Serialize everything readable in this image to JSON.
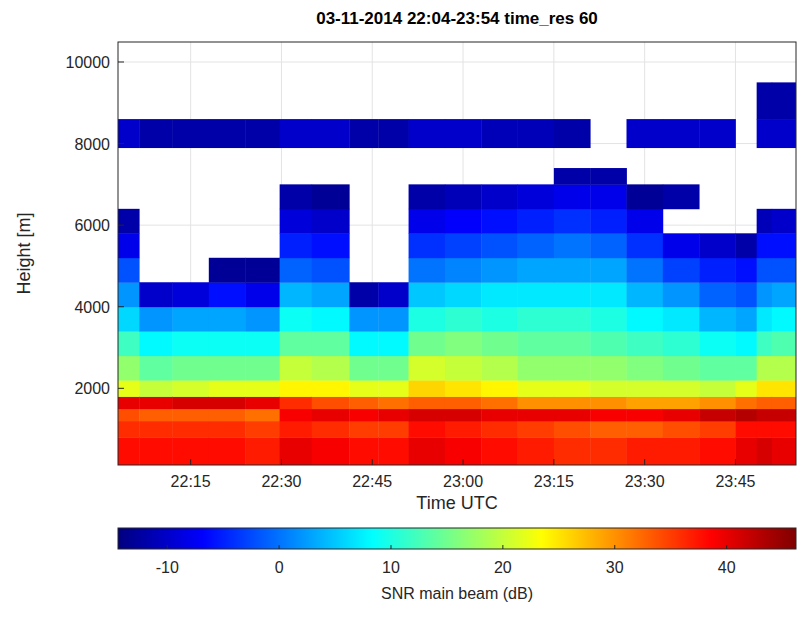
{
  "chart_data": {
    "type": "heatmap",
    "title": "03-11-2014 22:04-23:54 time_res 60",
    "x_label": "Time UTC",
    "y_label": "Height [m]",
    "xlim": [
      1323,
      1435
    ],
    "xticks": [
      {
        "value": 1335,
        "label": "22:15"
      },
      {
        "value": 1350,
        "label": "22:30"
      },
      {
        "value": 1365,
        "label": "22:45"
      },
      {
        "value": 1380,
        "label": "23:00"
      },
      {
        "value": 1395,
        "label": "23:15"
      },
      {
        "value": 1410,
        "label": "23:30"
      },
      {
        "value": 1425,
        "label": "23:45"
      }
    ],
    "ylim": [
      120,
      10490
    ],
    "yticks": [
      2000,
      4000,
      6000,
      8000,
      10000
    ],
    "grid": true,
    "x_edges": [
      1323,
      1326.5,
      1332,
      1338,
      1344,
      1349.7,
      1355,
      1361.2,
      1366,
      1371,
      1377,
      1383,
      1389,
      1395,
      1401,
      1407,
      1413,
      1419,
      1425,
      1428.5,
      1431,
      1435
    ],
    "y_edges": [
      120,
      800,
      1200,
      1500,
      1800,
      2200,
      2800,
      3400,
      4000,
      4600,
      5200,
      5800,
      6400,
      7000,
      7400,
      7900,
      8600,
      9500,
      10490
    ],
    "cells": [
      [
        38,
        36,
        34,
        40,
        22,
        17,
        12,
        6,
        2,
        -2,
        -8,
        -12,
        null,
        null,
        null,
        -10,
        null,
        null
      ],
      [
        38,
        36,
        33,
        40,
        20,
        14,
        8,
        2,
        -10,
        null,
        null,
        null,
        null,
        null,
        null,
        -12,
        null,
        null
      ],
      [
        38,
        36,
        33,
        41,
        21,
        15,
        9,
        3,
        -9,
        null,
        null,
        null,
        null,
        null,
        null,
        -12,
        null,
        null
      ],
      [
        38,
        36,
        33,
        41,
        22,
        15,
        9,
        3,
        -6,
        -13,
        null,
        null,
        null,
        null,
        null,
        -12,
        null,
        null
      ],
      [
        37,
        35,
        32,
        40,
        22,
        15,
        9,
        2,
        -8,
        -13,
        null,
        null,
        null,
        null,
        null,
        -12,
        null,
        null
      ],
      [
        40,
        37,
        39,
        36,
        24,
        20,
        14,
        9,
        4,
        -1,
        -5,
        -9,
        -12,
        null,
        null,
        -10,
        null,
        null
      ],
      [
        39,
        36,
        40,
        34,
        24,
        19,
        14,
        8,
        3,
        -2,
        -6,
        -10,
        -13,
        null,
        null,
        -10,
        null,
        null
      ],
      [
        38,
        35,
        39,
        33,
        22,
        15,
        8,
        2,
        -12,
        null,
        null,
        null,
        null,
        null,
        null,
        -12,
        null,
        null
      ],
      [
        38,
        35,
        40,
        32,
        22,
        15,
        8,
        2,
        -10,
        null,
        null,
        null,
        null,
        null,
        null,
        -12,
        null,
        null
      ],
      [
        40,
        38,
        41,
        33,
        26,
        21,
        15,
        10,
        5,
        0,
        -4,
        -8,
        -12,
        null,
        null,
        -10,
        null,
        null
      ],
      [
        39,
        37,
        41,
        33,
        25,
        20,
        16,
        11,
        6,
        1,
        -3,
        -7,
        -11,
        null,
        null,
        -10,
        null,
        null
      ],
      [
        38,
        36,
        40,
        32,
        24,
        19,
        15,
        10,
        7,
        2,
        -2,
        -6,
        -10,
        null,
        null,
        -11,
        null,
        null
      ],
      [
        37,
        35,
        40,
        30,
        22,
        17,
        14,
        11,
        7,
        3,
        -1,
        -5,
        -9,
        null,
        null,
        -11,
        null,
        null
      ],
      [
        36,
        34,
        40,
        30,
        22,
        17,
        14,
        11,
        7,
        3,
        0,
        -4,
        -8,
        -12,
        null,
        -12,
        null,
        null
      ],
      [
        36,
        33,
        39,
        30,
        21,
        17,
        13,
        10,
        7,
        3,
        -1,
        -5,
        -8,
        -12,
        null,
        null,
        null,
        null
      ],
      [
        37,
        33,
        39,
        29,
        21,
        16,
        12,
        8,
        4,
        0,
        -4,
        -8,
        -13,
        null,
        null,
        -10,
        null,
        null
      ],
      [
        37,
        34,
        40,
        29,
        21,
        15,
        11,
        7,
        2,
        -3,
        -8,
        null,
        -12,
        null,
        null,
        -10,
        null,
        null
      ],
      [
        38,
        35,
        42,
        30,
        20,
        14,
        9,
        4,
        -1,
        -5,
        -10,
        null,
        null,
        null,
        null,
        -10,
        null,
        null
      ],
      [
        40,
        38,
        43,
        32,
        22,
        14,
        8,
        3,
        -2,
        -6,
        -12,
        null,
        null,
        null,
        null,
        null,
        null,
        null
      ],
      [
        41,
        38,
        42,
        33,
        25,
        19,
        12,
        7,
        2,
        -2,
        -6,
        -11,
        null,
        null,
        null,
        -10,
        -12,
        null
      ],
      [
        40,
        38,
        42,
        33,
        25,
        19,
        13,
        8,
        3,
        -2,
        -6,
        -10,
        null,
        null,
        null,
        -10,
        -12,
        null
      ]
    ],
    "colorbar": {
      "range": [
        -14.4,
        46.2
      ],
      "ticks": [
        -10,
        0,
        10,
        20,
        30,
        40
      ],
      "label": "SNR main beam (dB)"
    }
  }
}
